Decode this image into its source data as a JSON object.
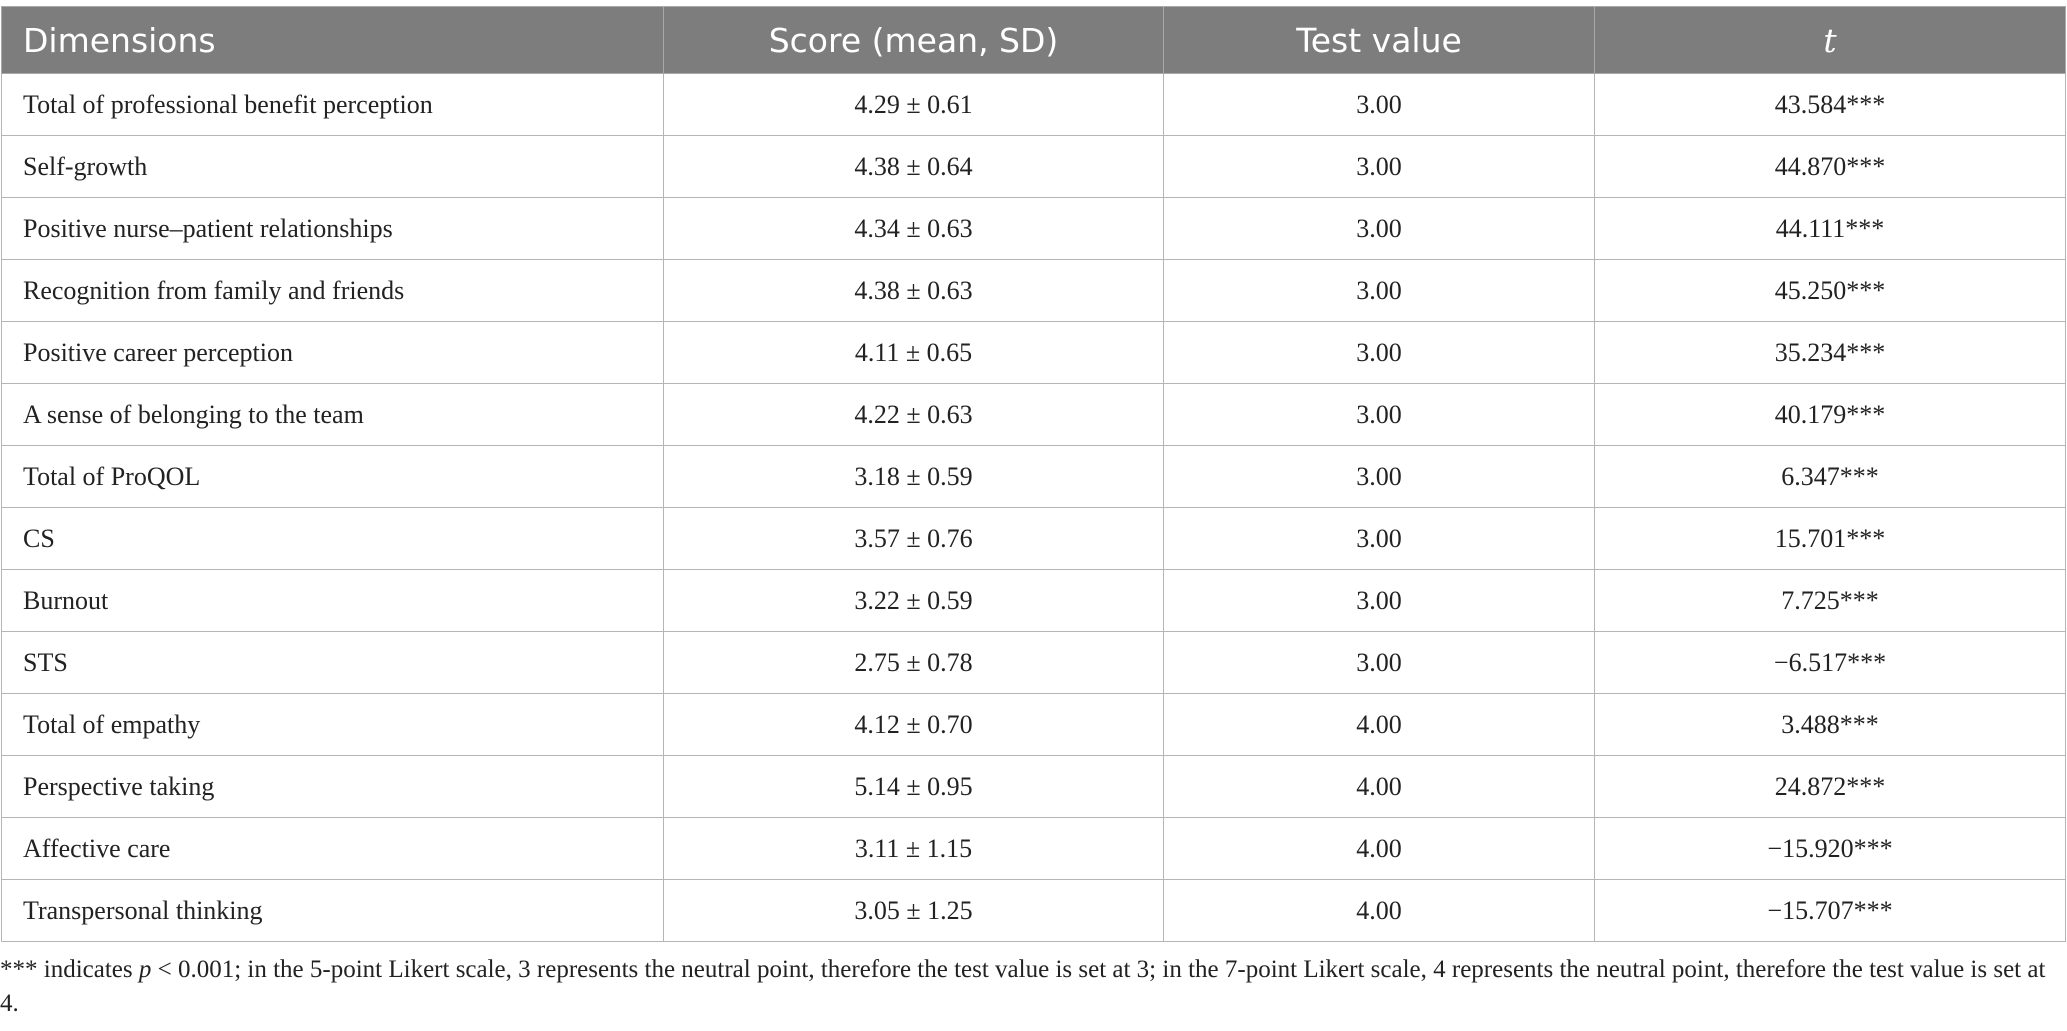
{
  "table": {
    "headers": {
      "dimensions": "Dimensions",
      "score": "Score (mean, SD)",
      "test_value": "Test value",
      "t": "t"
    },
    "rows": [
      {
        "dimension": "Total of professional benefit perception",
        "score": "4.29 ± 0.61",
        "test_value": "3.00",
        "t": "43.584***"
      },
      {
        "dimension": "Self-growth",
        "score": "4.38 ± 0.64",
        "test_value": "3.00",
        "t": "44.870***"
      },
      {
        "dimension": "Positive nurse–patient relationships",
        "score": "4.34 ± 0.63",
        "test_value": "3.00",
        "t": "44.111***"
      },
      {
        "dimension": "Recognition from family and friends",
        "score": "4.38 ± 0.63",
        "test_value": "3.00",
        "t": "45.250***"
      },
      {
        "dimension": "Positive career perception",
        "score": "4.11 ± 0.65",
        "test_value": "3.00",
        "t": "35.234***"
      },
      {
        "dimension": "A sense of belonging to the team",
        "score": "4.22 ± 0.63",
        "test_value": "3.00",
        "t": "40.179***"
      },
      {
        "dimension": "Total of ProQOL",
        "score": "3.18 ± 0.59",
        "test_value": "3.00",
        "t": "6.347***"
      },
      {
        "dimension": "CS",
        "score": "3.57 ± 0.76",
        "test_value": "3.00",
        "t": "15.701***"
      },
      {
        "dimension": "Burnout",
        "score": "3.22 ± 0.59",
        "test_value": "3.00",
        "t": "7.725***"
      },
      {
        "dimension": "STS",
        "score": "2.75 ± 0.78",
        "test_value": "3.00",
        "t": "−6.517***"
      },
      {
        "dimension": "Total of empathy",
        "score": "4.12 ± 0.70",
        "test_value": "4.00",
        "t": "3.488***"
      },
      {
        "dimension": "Perspective taking",
        "score": "5.14 ± 0.95",
        "test_value": "4.00",
        "t": "24.872***"
      },
      {
        "dimension": "Affective care",
        "score": "3.11 ± 1.15",
        "test_value": "4.00",
        "t": "−15.920***"
      },
      {
        "dimension": "Transpersonal thinking",
        "score": "3.05 ± 1.25",
        "test_value": "4.00",
        "t": "−15.707***"
      }
    ]
  },
  "footnote": {
    "prefix": "*** indicates ",
    "p_symbol": "p",
    "suffix": " < 0.001; in the 5-point Likert scale, 3 represents the neutral point, therefore the test value is set at 3; in the 7-point Likert scale, 4 represents the neutral point, therefore the test value is set at 4."
  }
}
